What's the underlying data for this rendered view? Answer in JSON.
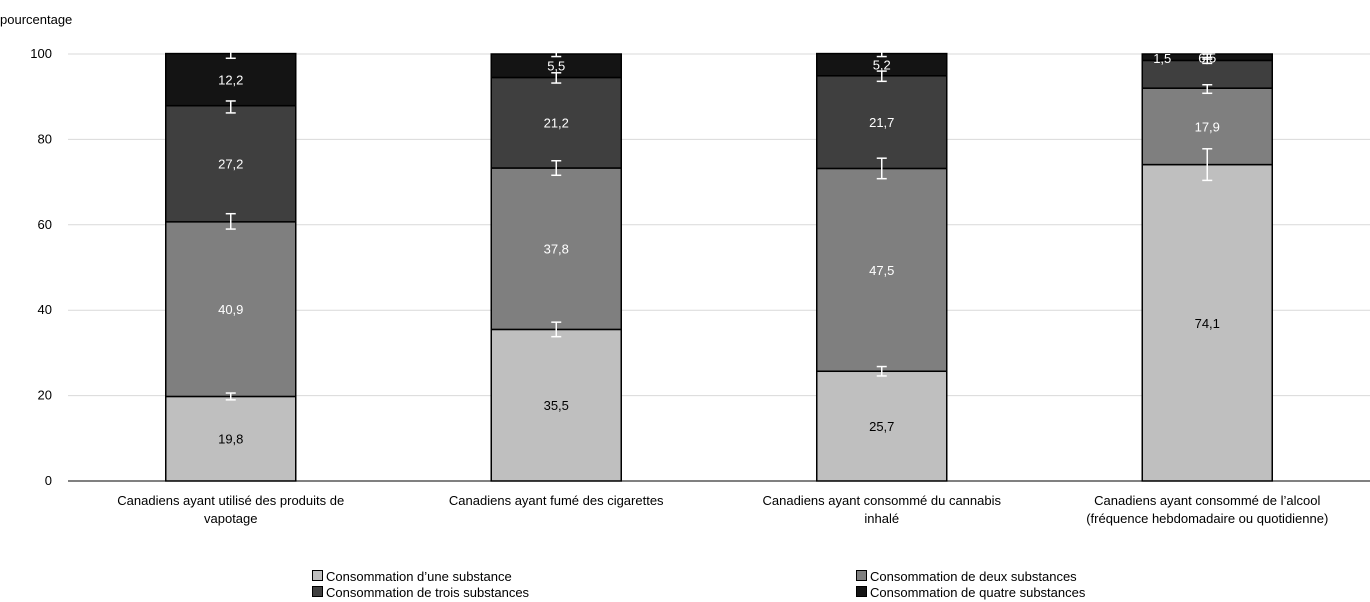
{
  "chart_data": {
    "type": "bar",
    "stacked": true,
    "ylabel": "pourcentage",
    "ylim": [
      0,
      100
    ],
    "yticks": [
      0,
      20,
      40,
      60,
      80,
      100
    ],
    "grid": true,
    "legend_position": "bottom",
    "categories": [
      [
        "Canadiens ayant utilisé des produits de",
        "vapotage"
      ],
      [
        "Canadiens ayant fumé des cigarettes"
      ],
      [
        "Canadiens ayant consommé du cannabis",
        "inhalé"
      ],
      [
        "Canadiens ayant consommé de l’alcool",
        "(fréquence hebdomadaire ou quotidienne)"
      ]
    ],
    "series": [
      {
        "name": "Consommation d’une substance",
        "color": "#bfbfbf",
        "label_color": "#000000",
        "values": [
          19.8,
          35.5,
          25.7,
          74.1
        ],
        "labels": [
          "19,8",
          "35,5",
          "25,7",
          "74,1"
        ]
      },
      {
        "name": "Consommation de deux substances",
        "color": "#7f7f7f",
        "label_color": "#ffffff",
        "values": [
          40.9,
          37.8,
          47.5,
          17.9
        ],
        "labels": [
          "40,9",
          "37,8",
          "47,5",
          "17,9"
        ]
      },
      {
        "name": "Consommation de trois substances",
        "color": "#3f3f3f",
        "label_color": "#ffffff",
        "values": [
          27.2,
          21.2,
          21.7,
          6.5
        ],
        "labels": [
          "27,2",
          "21,2",
          "21,7",
          "6,5"
        ]
      },
      {
        "name": "Consommation de quatre substances",
        "color": "#141414",
        "label_color": "#ffffff",
        "values": [
          12.2,
          5.5,
          5.2,
          1.5
        ],
        "labels": [
          "12,2",
          "5,5",
          "5,2",
          "1,5"
        ]
      }
    ],
    "error_bars": {
      "color": "#ffffff",
      "intervals": [
        [
          [
            19.0,
            20.6
          ],
          [
            59.0,
            62.6
          ],
          [
            86.2,
            89.0
          ],
          [
            99.0,
            101.0
          ]
        ],
        [
          [
            33.8,
            37.2
          ],
          [
            71.6,
            75.0
          ],
          [
            93.2,
            95.6
          ],
          [
            99.4,
            100.6
          ]
        ],
        [
          [
            24.6,
            26.8
          ],
          [
            70.8,
            75.6
          ],
          [
            93.6,
            96.0
          ],
          [
            99.4,
            100.6
          ]
        ],
        [
          [
            70.4,
            77.8
          ],
          [
            90.8,
            92.8
          ],
          [
            97.8,
            99.2
          ],
          [
            98.8,
            100.0
          ]
        ]
      ]
    }
  }
}
